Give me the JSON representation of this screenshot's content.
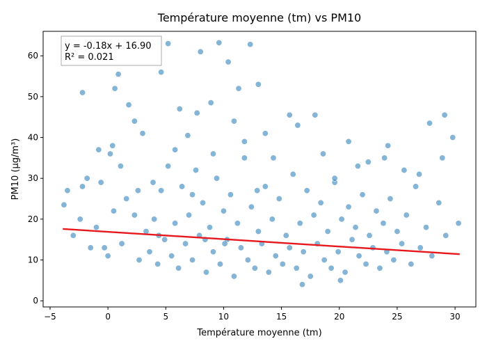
{
  "chart_data": {
    "type": "scatter",
    "title": "Température moyenne (tm) vs PM10",
    "xlabel": "Température moyenne (tm)",
    "ylabel": "PM10 (µg/m³)",
    "xlim": [
      -5.6,
      31.8
    ],
    "ylim": [
      -1.5,
      66.0
    ],
    "xticks": [
      -5,
      0,
      5,
      10,
      15,
      20,
      25,
      30
    ],
    "yticks": [
      0,
      10,
      20,
      30,
      40,
      50,
      60
    ],
    "grid": false,
    "point_color": "#1f77b4",
    "line_color": "#e8171b",
    "annotation": {
      "equation": "y = -0.18x + 16.90",
      "r_squared": "R² = 0.021",
      "placement": "top-left"
    },
    "regression": {
      "slope": -0.18,
      "intercept": 16.9,
      "x_range": [
        -3.9,
        30.4
      ]
    },
    "series": [
      {
        "x": [
          -3.8,
          -3.5,
          -3.0,
          -2.4,
          -2.2,
          -1.8,
          -1.5,
          -1.0,
          -0.6,
          -0.3,
          0.0,
          0.2,
          0.5,
          0.9,
          1.2,
          1.6,
          2.0,
          2.3,
          2.7,
          3.0,
          3.3,
          3.6,
          4.0,
          4.3,
          4.6,
          4.9,
          5.2,
          5.5,
          5.8,
          6.1,
          6.4,
          6.7,
          7.0,
          7.3,
          7.6,
          7.9,
          8.2,
          8.5,
          8.8,
          9.1,
          9.4,
          9.7,
          10.0,
          10.3,
          10.6,
          10.9,
          11.2,
          11.5,
          11.8,
          12.1,
          12.4,
          12.7,
          13.0,
          13.3,
          13.6,
          13.9,
          14.2,
          14.5,
          14.8,
          15.1,
          15.4,
          15.7,
          16.0,
          16.3,
          16.6,
          16.9,
          17.2,
          17.5,
          17.8,
          18.1,
          18.4,
          18.7,
          19.0,
          19.3,
          19.6,
          19.9,
          20.2,
          20.5,
          20.8,
          21.1,
          21.4,
          21.7,
          22.0,
          22.3,
          22.6,
          22.9,
          23.2,
          23.5,
          23.8,
          24.1,
          24.4,
          24.7,
          25.0,
          25.4,
          25.8,
          26.2,
          26.6,
          27.0,
          27.5,
          28.0,
          28.6,
          29.2,
          29.8,
          30.3,
          3.1,
          5.2,
          8.0,
          9.6,
          10.4,
          12.3,
          1.8,
          0.6,
          17.9,
          29.1,
          -2.2,
          11.3,
          13.0,
          4.6,
          2.3,
          7.7,
          6.2,
          8.9,
          10.9,
          15.7,
          20.8,
          24.2,
          27.8,
          1.1,
          0.4,
          16.4,
          22.5,
          13.6,
          6.9,
          5.8,
          9.1,
          11.8,
          14.3,
          18.6,
          21.6,
          23.9,
          26.9,
          3.9,
          2.6,
          7.3,
          12.9,
          19.6,
          25.6,
          28.9,
          -0.8,
          4.4,
          8.4,
          10.1,
          16.8,
          20.1
        ],
        "y": [
          23.5,
          27.0,
          16.0,
          20.0,
          51.0,
          30.0,
          13.0,
          18.0,
          29.0,
          13.0,
          11.0,
          36.0,
          22.0,
          55.5,
          14.0,
          25.0,
          59.5,
          21.0,
          10.0,
          41.0,
          17.0,
          12.0,
          20.0,
          9.0,
          27.0,
          15.0,
          33.0,
          11.0,
          19.0,
          8.0,
          28.0,
          14.0,
          21.0,
          10.0,
          32.0,
          16.0,
          24.0,
          7.0,
          18.0,
          12.0,
          30.0,
          9.0,
          22.0,
          15.0,
          26.0,
          6.0,
          19.0,
          13.0,
          35.0,
          10.0,
          23.0,
          8.0,
          17.0,
          14.0,
          28.0,
          7.0,
          20.0,
          11.0,
          25.0,
          9.0,
          16.0,
          13.0,
          31.0,
          8.0,
          19.0,
          12.0,
          27.0,
          6.0,
          21.0,
          14.0,
          24.0,
          10.0,
          17.0,
          8.0,
          29.0,
          12.0,
          20.0,
          7.0,
          23.0,
          15.0,
          18.0,
          11.0,
          26.0,
          9.0,
          16.0,
          13.0,
          22.0,
          8.0,
          19.0,
          12.0,
          25.0,
          10.0,
          17.0,
          14.0,
          21.0,
          9.0,
          28.0,
          13.0,
          18.0,
          11.0,
          24.0,
          16.0,
          40.0,
          19.0,
          63.5,
          63.0,
          61.0,
          63.2,
          58.5,
          62.8,
          48.0,
          52.0,
          45.5,
          45.5,
          28.0,
          52.0,
          53.0,
          56.0,
          44.0,
          46.0,
          47.0,
          48.5,
          44.0,
          45.5,
          39.0,
          38.0,
          43.5,
          33.0,
          38.0,
          43.0,
          34.0,
          41.0,
          40.5,
          37.0,
          36.0,
          39.0,
          35.0,
          36.0,
          33.0,
          35.0,
          31.0,
          29.0,
          27.0,
          26.0,
          27.0,
          30.0,
          32.0,
          35.0,
          37.0,
          16.0,
          15.0,
          14.0,
          4.0,
          5.0
        ]
      }
    ]
  }
}
